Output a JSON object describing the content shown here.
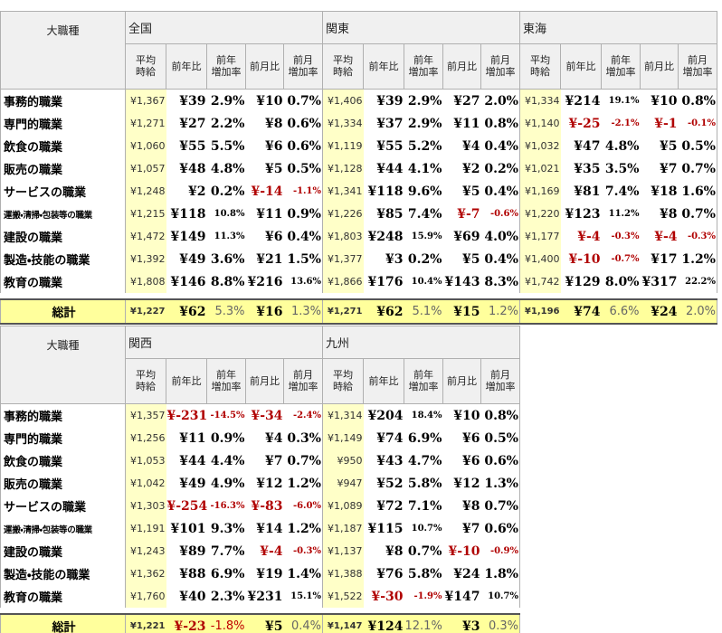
{
  "tables": [
    {
      "label_header": "大職種",
      "subheaders": [
        [
          "平均",
          "時給"
        ],
        [
          "前年比"
        ],
        [
          "前年",
          "増加率"
        ],
        [
          "前月比"
        ],
        [
          "前月",
          "増加率"
        ]
      ],
      "regions": [
        "全国",
        "関東",
        "東海"
      ],
      "rows": [
        {
          "label": "事務的職業",
          "cells": [
            [
              "¥1,367",
              "¥39",
              "2.9%",
              "¥10",
              "0.7%"
            ],
            [
              "¥1,406",
              "¥39",
              "2.9%",
              "¥27",
              "2.0%"
            ],
            [
              "¥1,334",
              "¥214",
              "19.1%",
              "¥10",
              "0.8%"
            ]
          ]
        },
        {
          "label": "専門的職業",
          "cells": [
            [
              "¥1,271",
              "¥27",
              "2.2%",
              "¥8",
              "0.6%"
            ],
            [
              "¥1,334",
              "¥37",
              "2.9%",
              "¥11",
              "0.8%"
            ],
            [
              "¥1,140",
              "¥-25",
              "-2.1%",
              "¥-1",
              "-0.1%"
            ]
          ]
        },
        {
          "label": "飲食の職業",
          "cells": [
            [
              "¥1,060",
              "¥55",
              "5.5%",
              "¥6",
              "0.6%"
            ],
            [
              "¥1,119",
              "¥55",
              "5.2%",
              "¥4",
              "0.4%"
            ],
            [
              "¥1,032",
              "¥47",
              "4.8%",
              "¥5",
              "0.5%"
            ]
          ]
        },
        {
          "label": "販売の職業",
          "cells": [
            [
              "¥1,057",
              "¥48",
              "4.8%",
              "¥5",
              "0.5%"
            ],
            [
              "¥1,128",
              "¥44",
              "4.1%",
              "¥2",
              "0.2%"
            ],
            [
              "¥1,021",
              "¥35",
              "3.5%",
              "¥7",
              "0.7%"
            ]
          ]
        },
        {
          "label": "サービスの職業",
          "cells": [
            [
              "¥1,248",
              "¥2",
              "0.2%",
              "¥-14",
              "-1.1%"
            ],
            [
              "¥1,341",
              "¥118",
              "9.6%",
              "¥5",
              "0.4%"
            ],
            [
              "¥1,169",
              "¥81",
              "7.4%",
              "¥18",
              "1.6%"
            ]
          ]
        },
        {
          "label": "運搬・清掃・包装等の職業",
          "cells": [
            [
              "¥1,215",
              "¥118",
              "10.8%",
              "¥11",
              "0.9%"
            ],
            [
              "¥1,226",
              "¥85",
              "7.4%",
              "¥-7",
              "-0.6%"
            ],
            [
              "¥1,220",
              "¥123",
              "11.2%",
              "¥8",
              "0.7%"
            ]
          ]
        },
        {
          "label": "建設の職業",
          "cells": [
            [
              "¥1,472",
              "¥149",
              "11.3%",
              "¥6",
              "0.4%"
            ],
            [
              "¥1,803",
              "¥248",
              "15.9%",
              "¥69",
              "4.0%"
            ],
            [
              "¥1,177",
              "¥-4",
              "-0.3%",
              "¥-4",
              "-0.3%"
            ]
          ]
        },
        {
          "label": "製造・技能の職業",
          "cells": [
            [
              "¥1,392",
              "¥49",
              "3.6%",
              "¥21",
              "1.5%"
            ],
            [
              "¥1,377",
              "¥3",
              "0.2%",
              "¥5",
              "0.4%"
            ],
            [
              "¥1,400",
              "¥-10",
              "-0.7%",
              "¥17",
              "1.2%"
            ]
          ]
        },
        {
          "label": "教育の職業",
          "cells": [
            [
              "¥1,808",
              "¥146",
              "8.8%",
              "¥216",
              "13.6%"
            ],
            [
              "¥1,866",
              "¥176",
              "10.4%",
              "¥143",
              "8.3%"
            ],
            [
              "¥1,742",
              "¥129",
              "8.0%",
              "¥317",
              "22.2%"
            ]
          ]
        }
      ],
      "total": {
        "label": "総計",
        "cells": [
          [
            "¥1,227",
            "¥62",
            "5.3%",
            "¥16",
            "1.3%"
          ],
          [
            "¥1,271",
            "¥62",
            "5.1%",
            "¥15",
            "1.2%"
          ],
          [
            "¥1,196",
            "¥74",
            "6.6%",
            "¥24",
            "2.0%"
          ]
        ]
      }
    },
    {
      "label_header": "大職種",
      "subheaders": [
        [
          "平均",
          "時給"
        ],
        [
          "前年比"
        ],
        [
          "前年",
          "増加率"
        ],
        [
          "前月比"
        ],
        [
          "前月",
          "増加率"
        ]
      ],
      "regions": [
        "関西",
        "九州"
      ],
      "rows": [
        {
          "label": "事務的職業",
          "cells": [
            [
              "¥1,357",
              "¥-231",
              "-14.5%",
              "¥-34",
              "-2.4%"
            ],
            [
              "¥1,314",
              "¥204",
              "18.4%",
              "¥10",
              "0.8%"
            ]
          ]
        },
        {
          "label": "専門的職業",
          "cells": [
            [
              "¥1,256",
              "¥11",
              "0.9%",
              "¥4",
              "0.3%"
            ],
            [
              "¥1,149",
              "¥74",
              "6.9%",
              "¥6",
              "0.5%"
            ]
          ]
        },
        {
          "label": "飲食の職業",
          "cells": [
            [
              "¥1,053",
              "¥44",
              "4.4%",
              "¥7",
              "0.7%"
            ],
            [
              "¥950",
              "¥43",
              "4.7%",
              "¥6",
              "0.6%"
            ]
          ]
        },
        {
          "label": "販売の職業",
          "cells": [
            [
              "¥1,042",
              "¥49",
              "4.9%",
              "¥12",
              "1.2%"
            ],
            [
              "¥947",
              "¥52",
              "5.8%",
              "¥12",
              "1.3%"
            ]
          ]
        },
        {
          "label": "サービスの職業",
          "cells": [
            [
              "¥1,303",
              "¥-254",
              "-16.3%",
              "¥-83",
              "-6.0%"
            ],
            [
              "¥1,089",
              "¥72",
              "7.1%",
              "¥8",
              "0.7%"
            ]
          ]
        },
        {
          "label": "運搬・清掃・包装等の職業",
          "cells": [
            [
              "¥1,191",
              "¥101",
              "9.3%",
              "¥14",
              "1.2%"
            ],
            [
              "¥1,187",
              "¥115",
              "10.7%",
              "¥7",
              "0.6%"
            ]
          ]
        },
        {
          "label": "建設の職業",
          "cells": [
            [
              "¥1,243",
              "¥89",
              "7.7%",
              "¥-4",
              "-0.3%"
            ],
            [
              "¥1,137",
              "¥8",
              "0.7%",
              "¥-10",
              "-0.9%"
            ]
          ]
        },
        {
          "label": "製造・技能の職業",
          "cells": [
            [
              "¥1,362",
              "¥88",
              "6.9%",
              "¥19",
              "1.4%"
            ],
            [
              "¥1,388",
              "¥76",
              "5.8%",
              "¥24",
              "1.8%"
            ]
          ]
        },
        {
          "label": "教育の職業",
          "cells": [
            [
              "¥1,760",
              "¥40",
              "2.3%",
              "¥231",
              "15.1%"
            ],
            [
              "¥1,522",
              "¥-30",
              "-1.9%",
              "¥147",
              "10.7%"
            ]
          ]
        }
      ],
      "total": {
        "label": "総計",
        "cells": [
          [
            "¥1,221",
            "¥-23",
            "-1.8%",
            "¥5",
            "0.4%"
          ],
          [
            "¥1,147",
            "¥124",
            "12.1%",
            "¥3",
            "0.3%"
          ]
        ]
      }
    }
  ]
}
